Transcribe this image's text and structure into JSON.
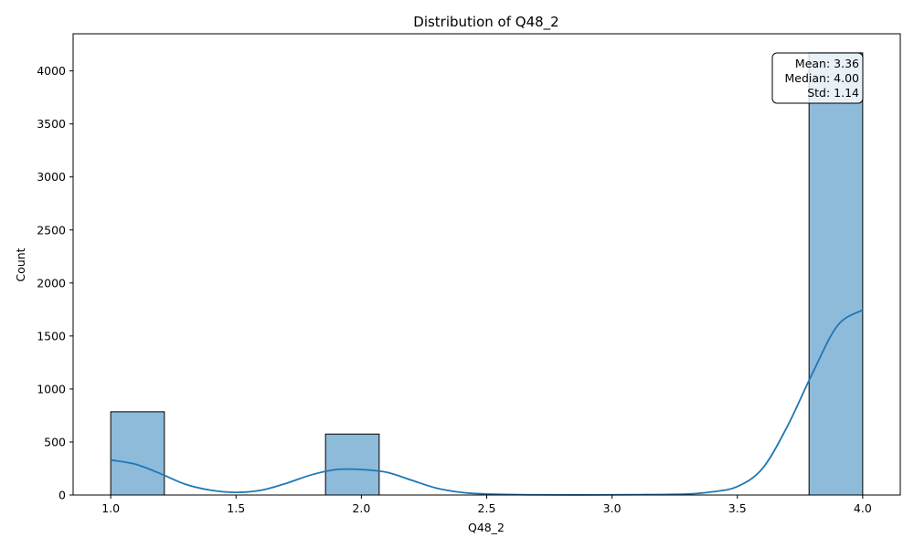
{
  "chart_data": {
    "type": "bar",
    "title": "Distribution of Q48_2",
    "xlabel": "Q48_2",
    "ylabel": "Count",
    "xlim": [
      0.85,
      4.15
    ],
    "ylim": [
      0,
      4350
    ],
    "xticks": [
      "1.0",
      "1.5",
      "2.0",
      "2.5",
      "3.0",
      "3.5",
      "4.0"
    ],
    "xtick_values": [
      1.0,
      1.5,
      2.0,
      2.5,
      3.0,
      3.5,
      4.0
    ],
    "yticks": [
      "0",
      "500",
      "1000",
      "1500",
      "2000",
      "2500",
      "3000",
      "3500",
      "4000"
    ],
    "ytick_values": [
      0,
      500,
      1000,
      1500,
      2000,
      2500,
      3000,
      3500,
      4000
    ],
    "bins": [
      {
        "x0": 1.0,
        "x1": 1.214,
        "count": 785
      },
      {
        "x0": 1.857,
        "x1": 2.071,
        "count": 575
      },
      {
        "x0": 3.786,
        "x1": 4.0,
        "count": 4170
      }
    ],
    "kde": {
      "x": [
        1.0,
        1.1,
        1.2,
        1.3,
        1.4,
        1.5,
        1.6,
        1.7,
        1.8,
        1.9,
        2.0,
        2.1,
        2.2,
        2.3,
        2.4,
        2.5,
        2.7,
        2.9,
        3.1,
        3.3,
        3.4,
        3.5,
        3.6,
        3.7,
        3.8,
        3.9,
        4.0
      ],
      "y": [
        330,
        290,
        200,
        100,
        45,
        25,
        45,
        110,
        190,
        240,
        240,
        215,
        140,
        65,
        25,
        10,
        2,
        1,
        3,
        10,
        30,
        80,
        250,
        650,
        1150,
        1600,
        1745
      ]
    },
    "bar_color": "#8fbbdb",
    "bar_edge_color": "#000000",
    "line_color": "#1f77b4",
    "stats_box": [
      "Mean: 3.36",
      "Median: 4.00",
      "Std: 1.14"
    ],
    "legend": "none",
    "grid": false
  }
}
